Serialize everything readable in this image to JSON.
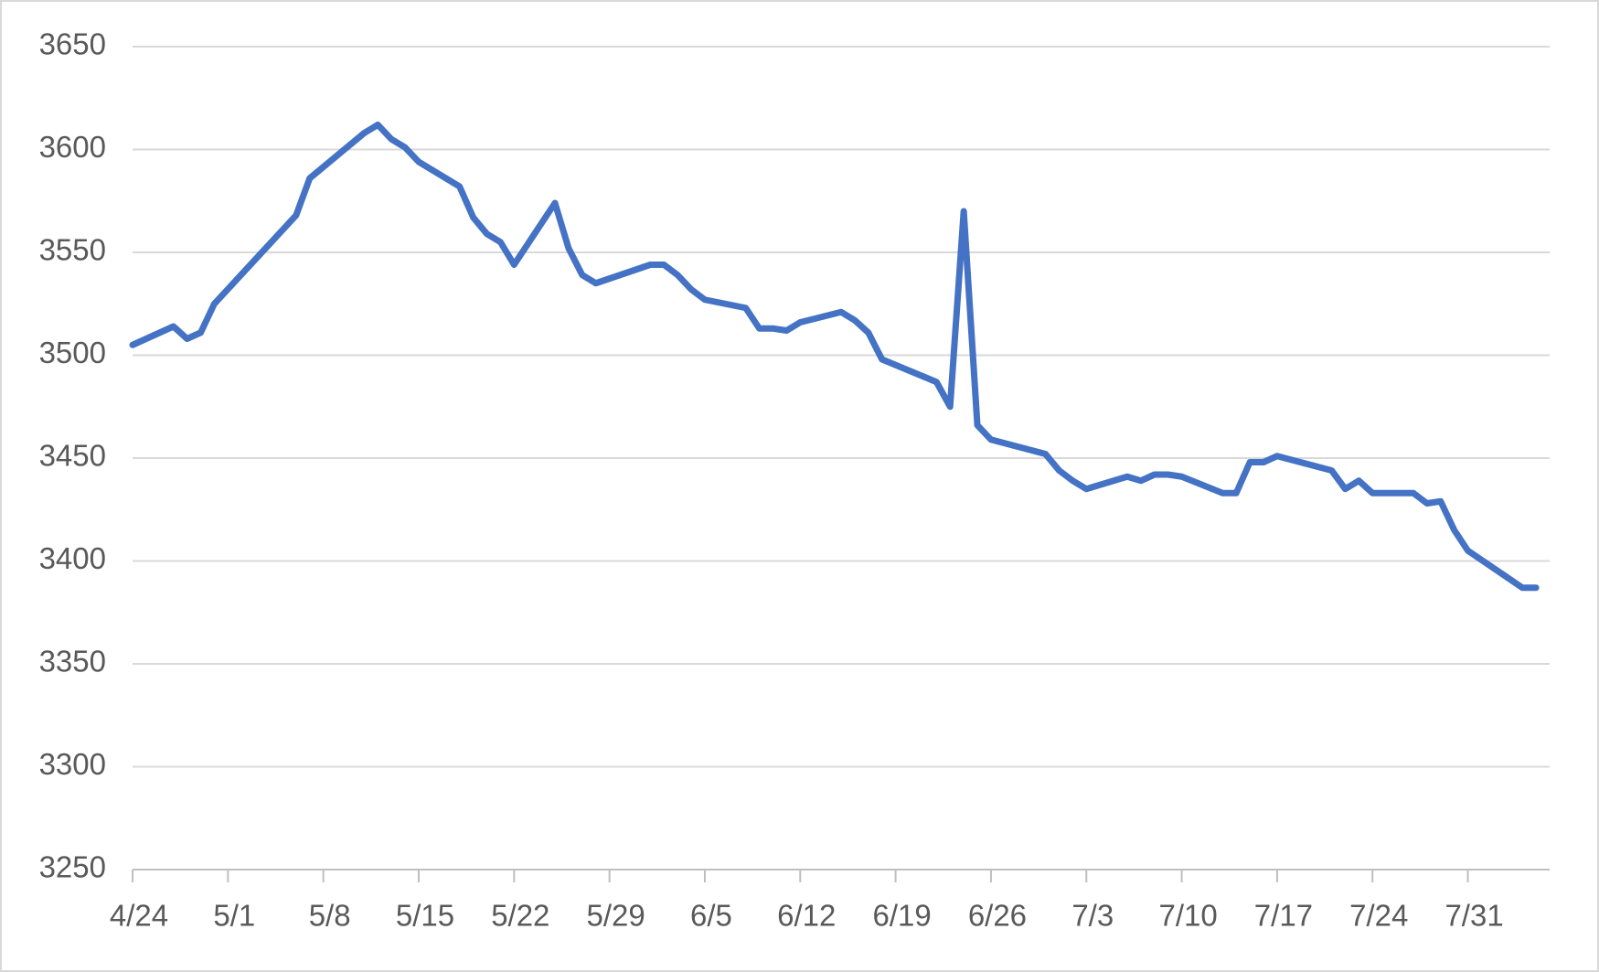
{
  "chart_data": {
    "type": "line",
    "x": [
      "4/24",
      "4/27",
      "4/28",
      "4/29",
      "4/30",
      "5/6",
      "5/7",
      "5/11",
      "5/12",
      "5/13",
      "5/14",
      "5/15",
      "5/18",
      "5/19",
      "5/20",
      "5/21",
      "5/22",
      "5/25",
      "5/26",
      "5/27",
      "5/28",
      "6/1",
      "6/2",
      "6/3",
      "6/4",
      "6/5",
      "6/8",
      "6/9",
      "6/10",
      "6/11",
      "6/12",
      "6/15",
      "6/16",
      "6/17",
      "6/18",
      "6/22",
      "6/23",
      "6/24",
      "6/25",
      "6/26",
      "6/30",
      "7/1",
      "7/2",
      "7/3",
      "7/6",
      "7/7",
      "7/8",
      "7/9",
      "7/10",
      "7/13",
      "7/14",
      "7/15",
      "7/16",
      "7/17",
      "7/21",
      "7/22",
      "7/23",
      "7/24",
      "7/27",
      "7/28",
      "7/29",
      "7/30",
      "7/31",
      "8/4",
      "8/5"
    ],
    "series": [
      {
        "color": "#4472c4",
        "values": [
          3505,
          3514,
          3508,
          3511,
          3525,
          3568,
          3586,
          3608,
          3612,
          3605,
          3601,
          3594,
          3582,
          3567,
          3559,
          3555,
          3544,
          3574,
          3552,
          3539,
          3535,
          3544,
          3544,
          3539,
          3532,
          3527,
          3523,
          3513,
          3513,
          3512,
          3516,
          3521,
          3517,
          3511,
          3498,
          3487,
          3475,
          3570,
          3466,
          3459,
          3452,
          3444,
          3439,
          3435,
          3441,
          3439,
          3442,
          3442,
          3441,
          3433,
          3433,
          3448,
          3448,
          3451,
          3444,
          3435,
          3439,
          3433,
          3433,
          3428,
          3429,
          3415,
          3405,
          3387,
          3387
        ]
      }
    ],
    "xlim": [
      "4/24",
      "8/6"
    ],
    "xticks": [
      "4/24",
      "5/1",
      "5/8",
      "5/15",
      "5/22",
      "5/29",
      "6/5",
      "6/12",
      "6/19",
      "6/26",
      "7/3",
      "7/10",
      "7/17",
      "7/24",
      "7/31"
    ],
    "ylim": [
      3250,
      3650
    ],
    "yticks": [
      3250,
      3300,
      3350,
      3400,
      3450,
      3500,
      3550,
      3600,
      3650
    ],
    "grid": true
  }
}
